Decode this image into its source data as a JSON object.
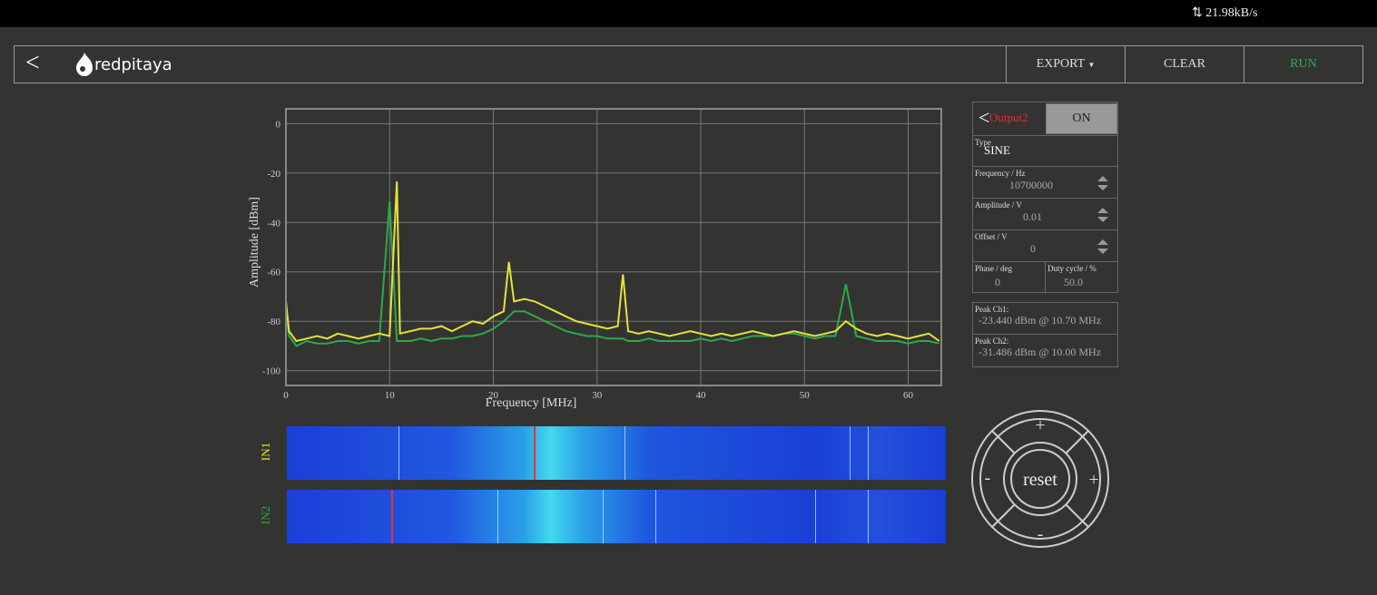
{
  "status_bar": {
    "speed": "21.98kB/s"
  },
  "header": {
    "logo": "redpitaya",
    "export": "EXPORT",
    "clear": "CLEAR",
    "run": "RUN"
  },
  "chart_data": {
    "type": "line",
    "xlabel": "Frequency   [MHz]",
    "ylabel": "Amplitude  [dBm]",
    "x": [
      0,
      0.3,
      1,
      2,
      3,
      4,
      5,
      6,
      7,
      8,
      9,
      10,
      10.7,
      11,
      12,
      13,
      14,
      15,
      16,
      17,
      18,
      19,
      20,
      21,
      21.5,
      22,
      23,
      24,
      25,
      26,
      27,
      28,
      29,
      30,
      31,
      32,
      32.5,
      33,
      34,
      35,
      36,
      37,
      38,
      39,
      40,
      41,
      42,
      43,
      44,
      45,
      46,
      47,
      48,
      49,
      50,
      51,
      52,
      53,
      54,
      55,
      56,
      57,
      58,
      59,
      60,
      61,
      62,
      63
    ],
    "series": [
      {
        "name": "IN1",
        "color": "#e4e43a",
        "values": [
          -72,
          -84,
          -88,
          -87,
          -86,
          -87,
          -85,
          -86,
          -87,
          -86,
          -85,
          -86,
          -23.44,
          -85,
          -84,
          -83,
          -83,
          -82,
          -84,
          -82,
          -80,
          -81,
          -78,
          -76,
          -56,
          -72,
          -71,
          -72,
          -74,
          -76,
          -78,
          -80,
          -81,
          -82,
          -83,
          -82,
          -61,
          -84,
          -85,
          -84,
          -85,
          -86,
          -85,
          -84,
          -85,
          -86,
          -85,
          -86,
          -85,
          -84,
          -85,
          -86,
          -85,
          -84,
          -85,
          -86,
          -85,
          -84,
          -80,
          -83,
          -85,
          -86,
          -85,
          -86,
          -87,
          -86,
          -85,
          -88
        ]
      },
      {
        "name": "IN2",
        "color": "#2ea84a",
        "values": [
          -75,
          -86,
          -90,
          -88,
          -89,
          -89,
          -88,
          -88,
          -89,
          -88,
          -88,
          -31.486,
          -88,
          -88,
          -88,
          -87,
          -88,
          -87,
          -87,
          -86,
          -86,
          -85,
          -83,
          -80,
          -78,
          -76,
          -76,
          -78,
          -80,
          -82,
          -84,
          -85,
          -86,
          -86,
          -87,
          -87,
          -87,
          -88,
          -88,
          -87,
          -88,
          -88,
          -88,
          -88,
          -87,
          -88,
          -87,
          -88,
          -87,
          -86,
          -86,
          -86,
          -85,
          -85,
          -86,
          -87,
          -86,
          -86,
          -65,
          -86,
          -87,
          -88,
          -88,
          -88,
          -89,
          -88,
          -88,
          -89
        ]
      }
    ],
    "xlim": [
      0,
      63.2
    ],
    "xticks": [
      0,
      10,
      20,
      30,
      40,
      50,
      60
    ],
    "ylim": [
      -106,
      6
    ],
    "yticks": [
      0,
      -20,
      -40,
      -60,
      -80,
      -100
    ],
    "grid": true
  },
  "output_panel": {
    "channel": "Output2",
    "state": "ON",
    "type_label": "Type",
    "type": "SINE",
    "frequency_label": "Frequency  / Hz",
    "frequency": "10700000",
    "amplitude_label": "Amplitude  / V",
    "amplitude": "0.01",
    "offset_label": "Offset  / V",
    "offset": "0",
    "phase_label": "Phase  / deg",
    "phase": "0",
    "duty_label": "Duty cycle  / %",
    "duty": "50.0"
  },
  "peak_panel": {
    "ch1_label": "Peak  Ch1:",
    "ch1": "-23.440  dBm @ 10.70  MHz",
    "ch2_label": "Peak  Ch2:",
    "ch2": "-31.486  dBm @ 10.00  MHz"
  },
  "joystick": {
    "up": "+",
    "left": "-",
    "right": "+",
    "down": "-",
    "center": "reset"
  }
}
